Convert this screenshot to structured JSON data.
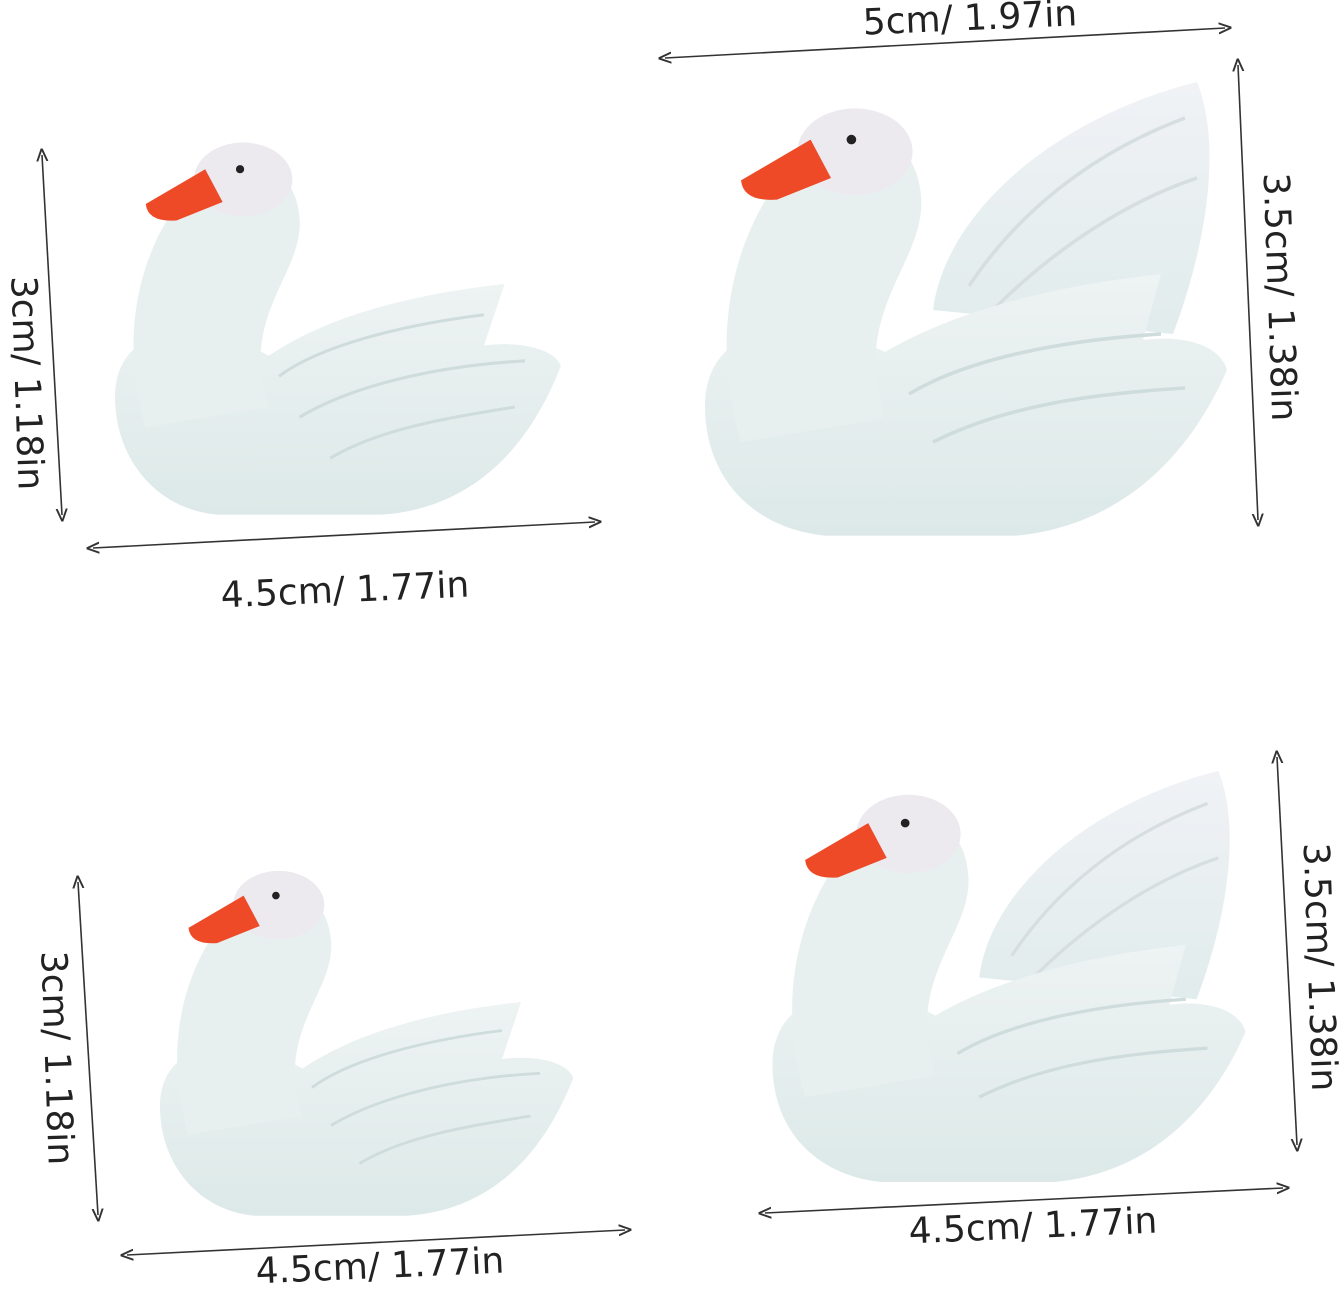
{
  "figures": [
    {
      "width": "4.5cm/ 1.77in",
      "height": "3cm/ 1.18in"
    },
    {
      "width": "5cm/ 1.97in",
      "height": "3.5cm/ 1.38in"
    },
    {
      "width": "4.5cm/ 1.77in",
      "height": "3cm/ 1.18in"
    },
    {
      "width": "4.5cm/ 1.77in",
      "height": "3.5cm/ 1.38in"
    }
  ]
}
